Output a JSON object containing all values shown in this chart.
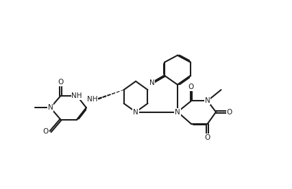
{
  "bg": "#ffffff",
  "lc": "#1c1c1c",
  "lw": 1.5,
  "fs": 7.5,
  "xlim": [
    0.15,
    3.55
  ],
  "ylim": [
    0.05,
    1.3
  ],
  "figsize": [
    4.26,
    2.76
  ],
  "dpi": 100
}
